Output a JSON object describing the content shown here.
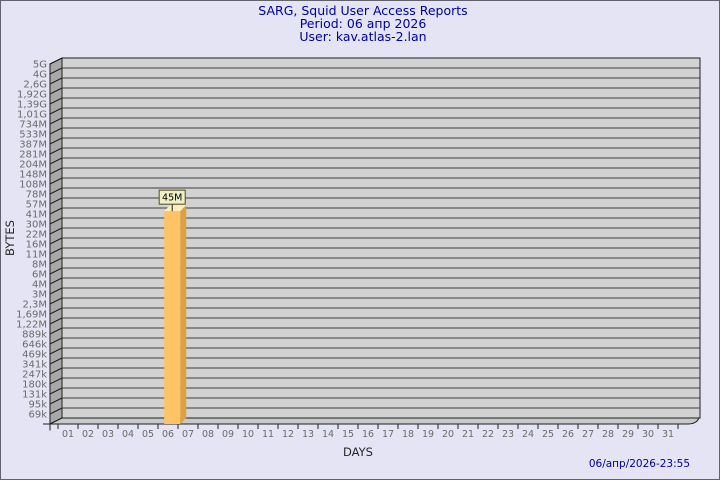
{
  "header": {
    "title": "SARG, Squid User Access Reports",
    "period_line": "Period: 06 апр 2026",
    "user_line": "User: kav.atlas-2.lan"
  },
  "footer": {
    "generated": "06/апр/2026-23:55"
  },
  "chart_data": {
    "type": "bar",
    "title": "SARG, Squid User Access Reports",
    "period": "06 апр 2026",
    "user": "kav.atlas-2.lan",
    "xlabel": "DAYS",
    "ylabel": "BYTES",
    "y_scale": "logarithmic",
    "grid": "horizontal",
    "legend": "none",
    "x_categories": [
      "01",
      "02",
      "03",
      "04",
      "05",
      "06",
      "07",
      "08",
      "09",
      "10",
      "11",
      "12",
      "13",
      "14",
      "15",
      "16",
      "17",
      "18",
      "19",
      "20",
      "21",
      "22",
      "23",
      "24",
      "25",
      "26",
      "27",
      "28",
      "29",
      "30",
      "31"
    ],
    "y_tick_labels": [
      "5G",
      "4G",
      "2,6G",
      "1,92G",
      "1,39G",
      "1,01G",
      "734M",
      "533M",
      "387M",
      "281M",
      "204M",
      "148M",
      "108M",
      "78M",
      "57M",
      "41M",
      "30M",
      "22M",
      "16M",
      "11M",
      "8M",
      "6M",
      "4M",
      "3M",
      "2,3M",
      "1,69M",
      "1,22M",
      "889k",
      "646k",
      "469k",
      "341k",
      "247k",
      "180k",
      "131k",
      "95k",
      "69k"
    ],
    "series": [
      {
        "name": "bytes-per-day",
        "points": [
          {
            "day": "06",
            "label": "45M",
            "bytes": 45000000
          }
        ]
      }
    ]
  },
  "colors": {
    "background": "#e4e4f4",
    "page_border": "#62626e",
    "title_text": "#000099",
    "timestamp_text": "#000099",
    "plot_face": "#d2d2d2",
    "plot_side_face": "#a8a8a8",
    "plot_bottom_face": "#c9c9c9",
    "plot_border": "#1f1f1f",
    "grid_line": "#3f3f3f",
    "tick_label": "#6b6b6b",
    "axis_title": "#262626",
    "bar_front": "#fdc364",
    "bar_side": "#dda23f",
    "bar_top": "#ffedbd",
    "annotation_bg": "#efefc6",
    "annotation_border": "#4f4f1f",
    "annotation_text": "#000000"
  }
}
